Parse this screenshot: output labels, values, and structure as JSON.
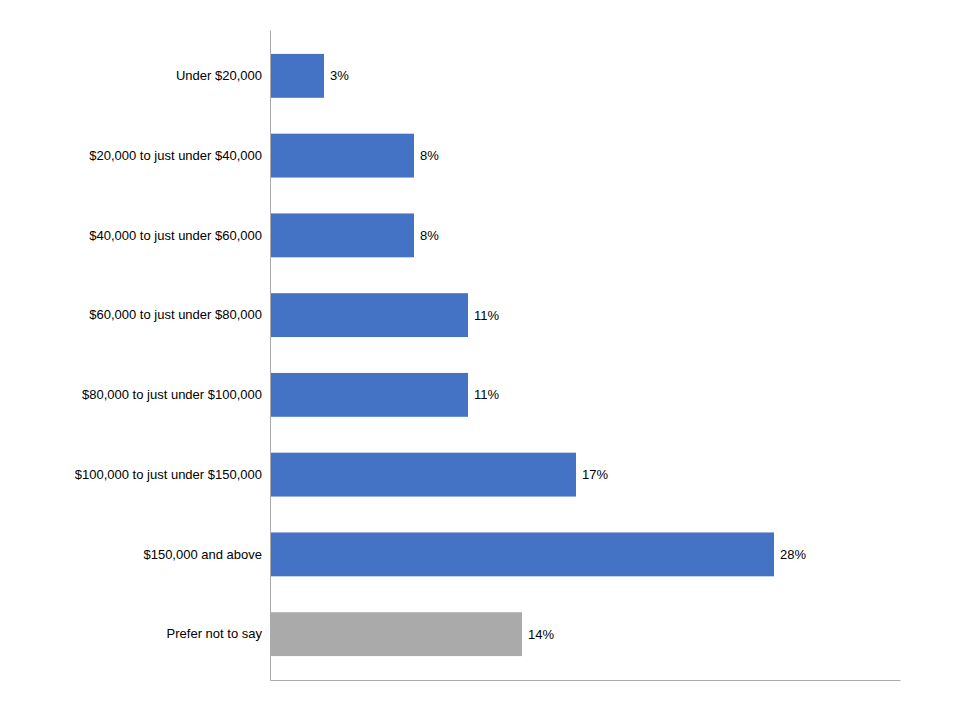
{
  "chart_data": {
    "type": "bar",
    "orientation": "horizontal",
    "categories": [
      "Prefer not to say",
      "$150,000 and above",
      "$100,000 to just under $150,000",
      "$80,000 to just under $100,000",
      "$60,000 to just under $80,000",
      "$40,000 to just under $60,000",
      "$20,000 to just under $40,000",
      "Under $20,000"
    ],
    "values": [
      14,
      28,
      17,
      11,
      11,
      8,
      8,
      3
    ],
    "value_labels": [
      "14%",
      "28%",
      "17%",
      "11%",
      "11%",
      "8%",
      "8%",
      "3%"
    ],
    "colors": [
      "#AAAAAA",
      "#4472C4",
      "#4472C4",
      "#4472C4",
      "#4472C4",
      "#4472C4",
      "#4472C4",
      "#4472C4"
    ],
    "xlim": [
      0,
      35
    ],
    "data_labels": true,
    "grid": false,
    "tick_labels": "y"
  }
}
